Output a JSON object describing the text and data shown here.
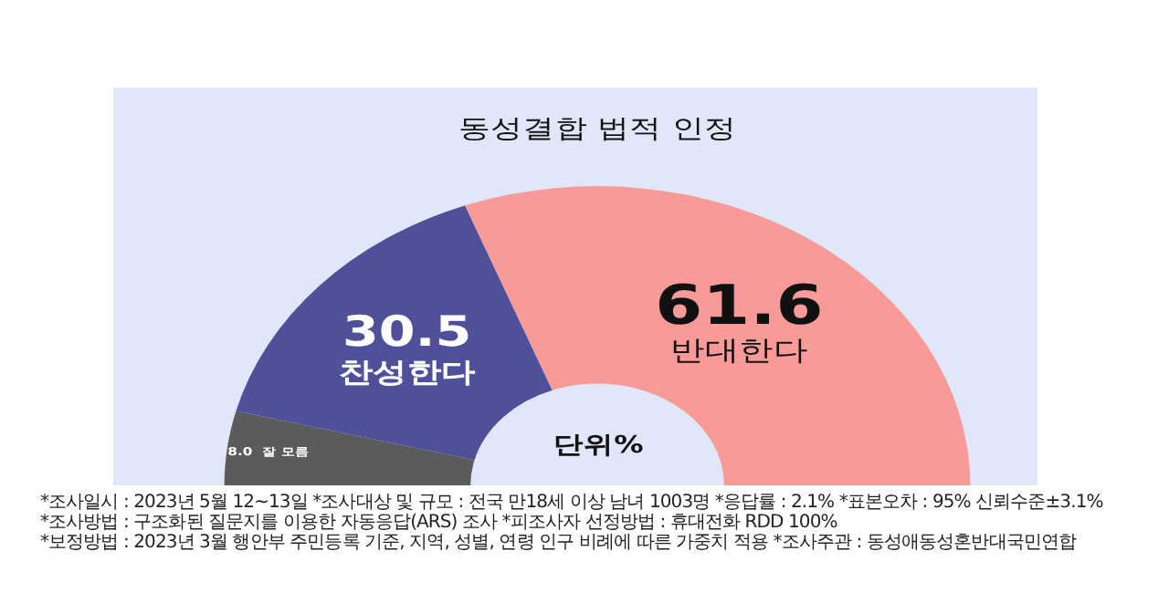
{
  "chart_data": {
    "type": "donut",
    "title": "동성결합 법적 인정",
    "categories": [
      "잘 모름",
      "찬성한다",
      "반대한다"
    ],
    "values": [
      8.0,
      30.5,
      61.6
    ],
    "value_labels": [
      "8.0",
      "30.5",
      "61.6"
    ],
    "colors": [
      "#5b5b5b",
      "#4e5099",
      "#f89b98"
    ],
    "annotations": [
      "단위%",
      "*조사일시 : 2023년 5월 12~13일  *조사대상 및 규모 : 전국 만18세 이상 남녀 1003명 *응답률 : 2.1%  *표본오차 : 95% 신뢰수준±3.1%",
      "*조사방법 : 구조화된 질문지를 이용한 자동응답(ARS) 조사  *피조사자 선정방법 : 휴대전화 RDD 100%",
      "*보정방법 : 2023년 3월 행안부 주민등록 기준, 지역, 성별, 연령 인구 비례에 따른 가중치 적용  *조사주관 : 동성애동성혼반대국민연합"
    ]
  }
}
